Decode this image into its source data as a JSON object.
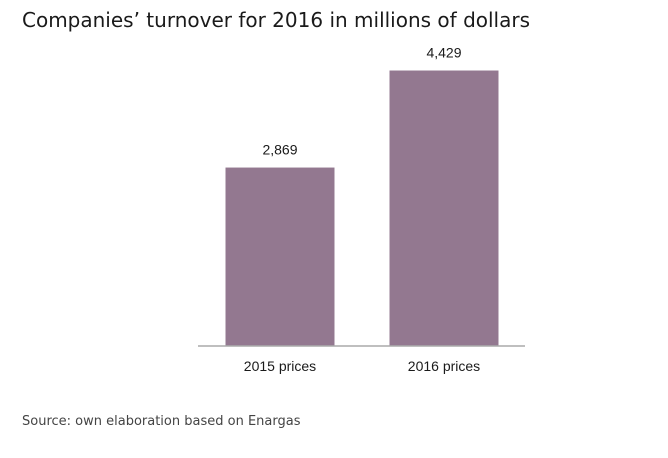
{
  "title": "Companies’ turnover for 2016 in millions of dollars",
  "source": "Source: own elaboration based on Enargas",
  "colors": {
    "bar": "#937890",
    "axis": "#aaaaaa",
    "text": "#1a1a1a"
  },
  "chart_data": {
    "type": "bar",
    "categories": [
      "2015 prices",
      "2016 prices"
    ],
    "values": [
      2869,
      4429
    ],
    "value_labels": [
      "2,869",
      "4,429"
    ],
    "ylim": [
      0,
      5000
    ],
    "grid": false,
    "legend": "none"
  }
}
